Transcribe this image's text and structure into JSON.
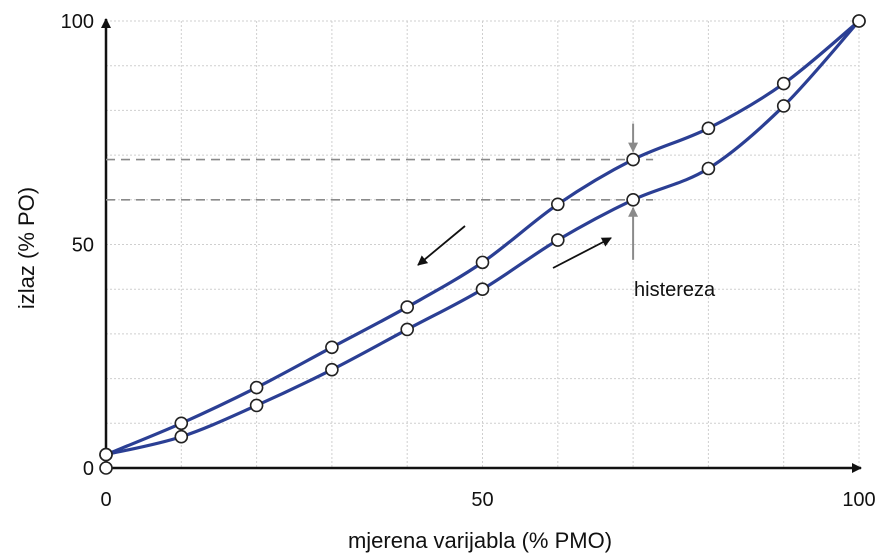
{
  "chart_data": {
    "type": "line",
    "xlabel": "mjerena varijabla (% PMO)",
    "ylabel": "izlaz (% PO)",
    "xlim": [
      0,
      100
    ],
    "ylim": [
      0,
      100
    ],
    "x_ticks": [
      "0",
      "50",
      "100"
    ],
    "y_ticks": [
      "0",
      "50",
      "100"
    ],
    "grid": true,
    "grid_step": 10,
    "series": [
      {
        "direction": "decreasing input (upper branch)",
        "x": [
          0,
          10,
          20,
          30,
          40,
          50,
          60,
          70,
          80,
          90,
          100
        ],
        "y": [
          3,
          10,
          18,
          27,
          36,
          46,
          59,
          69,
          76,
          86,
          100
        ]
      },
      {
        "direction": "increasing input (lower branch)",
        "x": [
          0,
          10,
          20,
          30,
          40,
          50,
          60,
          70,
          80,
          90,
          100
        ],
        "y": [
          3,
          7,
          14,
          22,
          31,
          40,
          51,
          60,
          67,
          81,
          100
        ]
      }
    ],
    "extra_points": [
      {
        "x": 0,
        "y": 0
      }
    ],
    "hysteresis": {
      "x": 70,
      "y_upper": 69,
      "y_lower": 60
    },
    "annotations": [
      {
        "text": "histereza"
      }
    ],
    "colors": {
      "series": "#2b3f94",
      "grid": "#cfcfcf",
      "dashed": "#8a8a8a",
      "arrow": "#111111",
      "marker_arrow": "#8a8a8a"
    }
  }
}
